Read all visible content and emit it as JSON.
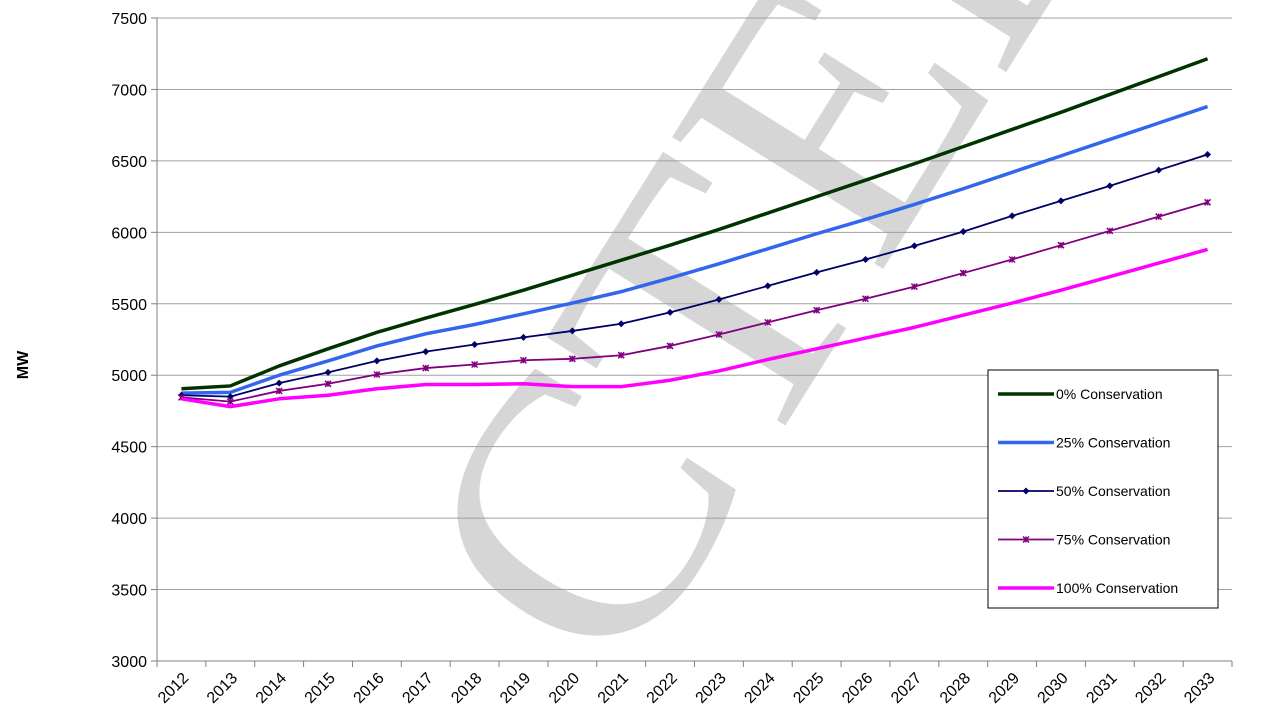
{
  "chart_data": {
    "type": "line",
    "ylabel": "MW",
    "xlabel": "",
    "ylim": [
      3000,
      7500
    ],
    "yticks": [
      3000,
      3500,
      4000,
      4500,
      5000,
      5500,
      6000,
      6500,
      7000,
      7500
    ],
    "grid": "horizontal",
    "legend": "right",
    "categories": [
      "2012",
      "2013",
      "2014",
      "2015",
      "2016",
      "2017",
      "2018",
      "2019",
      "2020",
      "2021",
      "2022",
      "2023",
      "2024",
      "2025",
      "2026",
      "2027",
      "2028",
      "2029",
      "2030",
      "2031",
      "2032",
      "2033"
    ],
    "series": [
      {
        "name": "0% Conservation",
        "color": "#003300",
        "marker": "none",
        "width": 3.5,
        "values": [
          4905,
          4925,
          5065,
          5185,
          5300,
          5400,
          5495,
          5595,
          5700,
          5805,
          5910,
          6020,
          6135,
          6250,
          6365,
          6480,
          6600,
          6720,
          6840,
          6965,
          7090,
          7215
        ]
      },
      {
        "name": "25% Conservation",
        "color": "#3366ee",
        "marker": "none",
        "width": 3.5,
        "values": [
          4875,
          4880,
          5000,
          5100,
          5205,
          5290,
          5355,
          5430,
          5505,
          5585,
          5680,
          5780,
          5885,
          5990,
          6090,
          6195,
          6305,
          6420,
          6535,
          6650,
          6765,
          6880
        ]
      },
      {
        "name": "50% Conservation",
        "color": "#000066",
        "marker": "diamond",
        "width": 1.8,
        "values": [
          4860,
          4850,
          4945,
          5020,
          5100,
          5165,
          5215,
          5265,
          5310,
          5360,
          5440,
          5530,
          5625,
          5720,
          5810,
          5905,
          6005,
          6115,
          6220,
          6325,
          6435,
          6545
        ]
      },
      {
        "name": "75% Conservation",
        "color": "#800080",
        "marker": "star",
        "width": 1.8,
        "values": [
          4845,
          4815,
          4890,
          4940,
          5005,
          5050,
          5075,
          5105,
          5115,
          5140,
          5205,
          5285,
          5370,
          5455,
          5535,
          5620,
          5715,
          5810,
          5910,
          6010,
          6110,
          6210
        ]
      },
      {
        "name": "100% Conservation",
        "color": "#ff00ff",
        "marker": "none",
        "width": 3.5,
        "values": [
          4835,
          4780,
          4835,
          4860,
          4905,
          4935,
          4935,
          4940,
          4920,
          4920,
          4965,
          5030,
          5110,
          5185,
          5260,
          5335,
          5420,
          5505,
          5595,
          5690,
          5785,
          5880
        ]
      }
    ]
  }
}
